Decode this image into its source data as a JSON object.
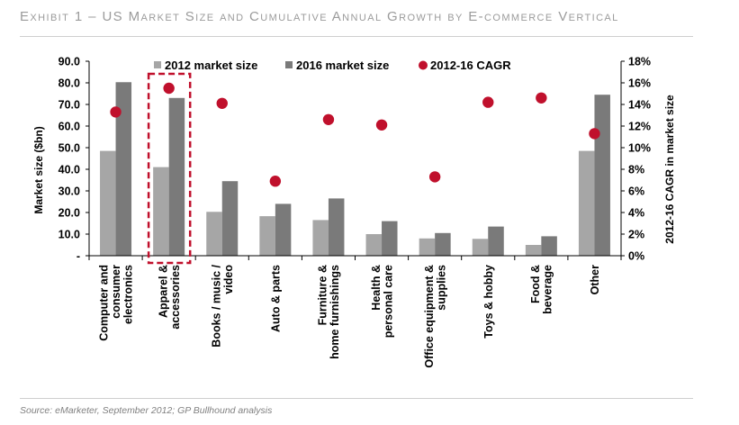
{
  "header": {
    "exhibit_title": "Exhibit 1 – US Market Size and Cumulative Annual Growth by E-commerce Vertical"
  },
  "footer": {
    "source": "Source: eMarketer, September 2012; GP Bullhound analysis"
  },
  "colors": {
    "series_2012": "#a6a6a6",
    "series_2016": "#7a7a7a",
    "cagr": "#c0102c",
    "highlight_box": "#c0102c"
  },
  "chart_data": {
    "type": "bar",
    "categories": [
      "Computer and consumer electronics",
      "Apparel & accessories",
      "Books / music / video",
      "Auto & parts",
      "Furniture & home furnishings",
      "Health & personal care",
      "Office equipment & supplies",
      "Toys & hobby",
      "Food & beverage",
      "Other"
    ],
    "category_label_lines": [
      [
        "Computer and",
        "consumer",
        "electronics"
      ],
      [
        "Apparel &",
        "accessories"
      ],
      [
        "Books / music /",
        "video"
      ],
      [
        "Auto & parts"
      ],
      [
        "Furniture &",
        "home furnishings"
      ],
      [
        "Health &",
        "personal care"
      ],
      [
        "Office equipment &",
        "supplies"
      ],
      [
        "Toys & hobby"
      ],
      [
        "Food &",
        "beverage"
      ],
      [
        "Other"
      ]
    ],
    "series": [
      {
        "name": "2012 market size",
        "type": "bar",
        "axis": "left",
        "values": [
          48.5,
          41.0,
          20.3,
          18.3,
          16.5,
          10.0,
          8.0,
          7.8,
          5.0,
          48.5
        ]
      },
      {
        "name": "2016 market size",
        "type": "bar",
        "axis": "left",
        "values": [
          80.3,
          73.0,
          34.5,
          24.0,
          26.5,
          16.0,
          10.5,
          13.5,
          9.0,
          74.5
        ]
      },
      {
        "name": "2012-16 CAGR",
        "type": "scatter",
        "axis": "right",
        "values": [
          13.3,
          15.5,
          14.1,
          6.9,
          12.6,
          12.1,
          7.3,
          14.2,
          14.6,
          11.3
        ]
      }
    ],
    "ylabel": "Market size ($bn)",
    "y2label": "2012-16 CAGR in market size",
    "ylim": [
      0,
      90
    ],
    "y2lim": [
      0,
      18
    ],
    "yticks": [
      "-",
      "10.0",
      "20.0",
      "30.0",
      "40.0",
      "50.0",
      "60.0",
      "70.0",
      "80.0",
      "90.0"
    ],
    "y2ticks": [
      "0%",
      "2%",
      "4%",
      "6%",
      "8%",
      "10%",
      "12%",
      "14%",
      "16%",
      "18%"
    ],
    "highlighted_category": "Apparel & accessories",
    "legend_position": "top",
    "grid": false
  }
}
